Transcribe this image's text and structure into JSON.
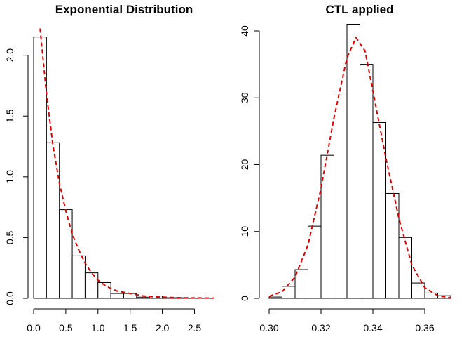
{
  "chart_data": [
    {
      "type": "bar",
      "subtype": "histogram",
      "title": "Exponential Distribution",
      "xlabel": "",
      "ylabel": "",
      "bin_edges": [
        0.0,
        0.2,
        0.4,
        0.6,
        0.8,
        1.0,
        1.2,
        1.4,
        1.6,
        1.8,
        2.0,
        2.2,
        2.4,
        2.6,
        2.8
      ],
      "values": [
        2.15,
        1.28,
        0.73,
        0.35,
        0.21,
        0.13,
        0.04,
        0.04,
        0.01,
        0.02,
        0.005,
        0.005,
        0.003,
        0.002
      ],
      "xlim": [
        0.0,
        2.8
      ],
      "ylim": [
        0.0,
        2.2
      ],
      "x_ticks": [
        "0.0",
        "0.5",
        "1.0",
        "1.5",
        "2.0",
        "2.5"
      ],
      "y_ticks": [
        "0.0",
        "0.5",
        "1.0",
        "1.5",
        "2.0"
      ],
      "density_curve": {
        "x": [
          0.1,
          0.15,
          0.2,
          0.3,
          0.4,
          0.5,
          0.6,
          0.7,
          0.8,
          0.9,
          1.0,
          1.1,
          1.2,
          1.3,
          1.4,
          1.5,
          1.6,
          1.7,
          1.8,
          2.0,
          2.2,
          2.4,
          2.6,
          2.8
        ],
        "y": [
          2.22,
          1.95,
          1.68,
          1.26,
          0.95,
          0.72,
          0.53,
          0.4,
          0.29,
          0.21,
          0.15,
          0.11,
          0.08,
          0.06,
          0.05,
          0.04,
          0.03,
          0.02,
          0.015,
          0.01,
          0.006,
          0.004,
          0.003,
          0.002
        ],
        "color": "#e00000",
        "style": "dashed"
      }
    },
    {
      "type": "bar",
      "subtype": "histogram",
      "title": "CTL applied",
      "xlabel": "",
      "ylabel": "",
      "bin_edges": [
        0.3,
        0.305,
        0.31,
        0.315,
        0.32,
        0.325,
        0.33,
        0.335,
        0.34,
        0.345,
        0.35,
        0.355,
        0.36,
        0.365,
        0.37
      ],
      "values": [
        0.2,
        1.8,
        4.3,
        10.8,
        21.4,
        30.4,
        41.0,
        35.0,
        26.3,
        15.7,
        9.1,
        2.3,
        0.8,
        0.4
      ],
      "xlim": [
        0.3,
        0.37
      ],
      "ylim": [
        0,
        40
      ],
      "x_ticks": [
        "0.30",
        "0.32",
        "0.34",
        "0.36"
      ],
      "y_ticks": [
        "0",
        "10",
        "20",
        "30",
        "40"
      ],
      "density_curve": {
        "x": [
          0.3,
          0.305,
          0.31,
          0.315,
          0.32,
          0.325,
          0.33,
          0.3335,
          0.337,
          0.34,
          0.345,
          0.35,
          0.355,
          0.36,
          0.365,
          0.37
        ],
        "y": [
          0.3,
          1.0,
          3.2,
          8.0,
          16.5,
          27.0,
          36.0,
          39.0,
          37.0,
          31.0,
          21.0,
          12.0,
          5.0,
          1.6,
          0.4,
          0.1
        ],
        "color": "#e00000",
        "style": "dashed"
      }
    }
  ]
}
